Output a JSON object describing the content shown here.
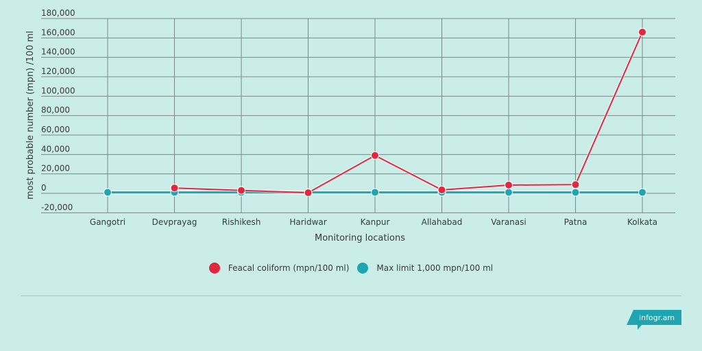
{
  "chart_data": {
    "type": "line",
    "title": "",
    "xlabel": "Monitoring locations",
    "ylabel": "most probable number (mpn) /100 ml",
    "ylim": [
      -20000,
      180000
    ],
    "y_ticks": [
      -20000,
      0,
      20000,
      40000,
      60000,
      80000,
      100000,
      120000,
      140000,
      160000,
      180000
    ],
    "y_tick_labels": [
      "-20,000",
      "0",
      "20,000",
      "40,000",
      "60,000",
      "80,000",
      "100,000",
      "120,000",
      "140,000",
      "160,000",
      "180,000"
    ],
    "grid": true,
    "legend_position": "bottom",
    "values_are_estimated": true,
    "values_note": "Values read off gridlines; the chart shows no data labels. Approximate, not exact.",
    "categories": [
      "Gangotri",
      "Devprayag",
      "Rishikesh",
      "Haridwar",
      "Kanpur",
      "Allahabad",
      "Varanasi",
      "Patna",
      "Kolkata"
    ],
    "series": [
      {
        "name": "Feacal coliform (mpn/100 ml)",
        "color": "#e0273f",
        "values": [
          null,
          5500,
          3000,
          600,
          39000,
          3500,
          8500,
          9000,
          166000
        ]
      },
      {
        "name": "Max limit 1,000 mpn/100 ml",
        "color": "#1fa4b2",
        "values": [
          1000,
          1000,
          1000,
          1000,
          1000,
          1000,
          1000,
          1000,
          1000
        ]
      }
    ]
  },
  "legend": {
    "items": [
      {
        "label": "Feacal coliform (mpn/100 ml)",
        "color": "#e0273f"
      },
      {
        "label": "Max limit 1,000 mpn/100 ml",
        "color": "#1fa4b2"
      }
    ]
  },
  "branding": {
    "label": "infogr.am",
    "color": "#1fa4b2"
  },
  "colors": {
    "background": "#cbede8",
    "grid": "#7d8785"
  }
}
